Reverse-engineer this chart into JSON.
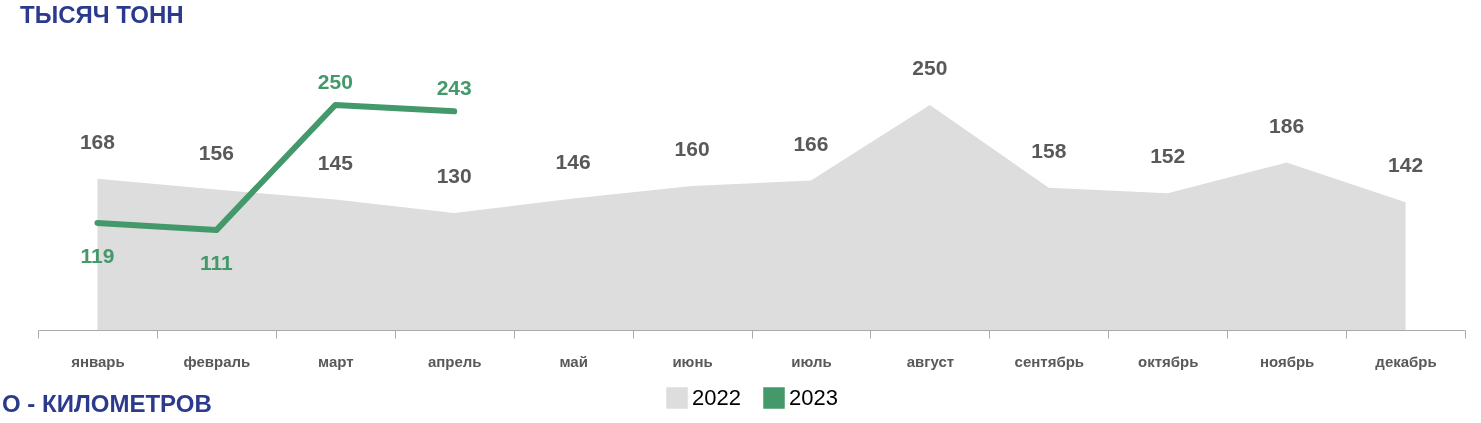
{
  "chart_data": {
    "type": "area",
    "title": "ТЫСЯЧ ТОНН",
    "categories": [
      "январь",
      "февраль",
      "март",
      "апрель",
      "май",
      "июнь",
      "июль",
      "август",
      "сентябрь",
      "октябрь",
      "ноябрь",
      "декабрь"
    ],
    "series": [
      {
        "name": "2022",
        "color": "#dddddd",
        "values": [
          168,
          156,
          145,
          130,
          146,
          160,
          166,
          250,
          158,
          152,
          186,
          142
        ]
      },
      {
        "name": "2023",
        "type": "line",
        "color": "#43996a",
        "values": [
          119,
          111,
          250,
          243,
          null,
          null,
          null,
          null,
          null,
          null,
          null,
          null
        ]
      }
    ],
    "data_labels": true,
    "legend": "bottom",
    "grid": false,
    "annotations": [
      "О - КИЛОМЕТРОВ"
    ]
  }
}
